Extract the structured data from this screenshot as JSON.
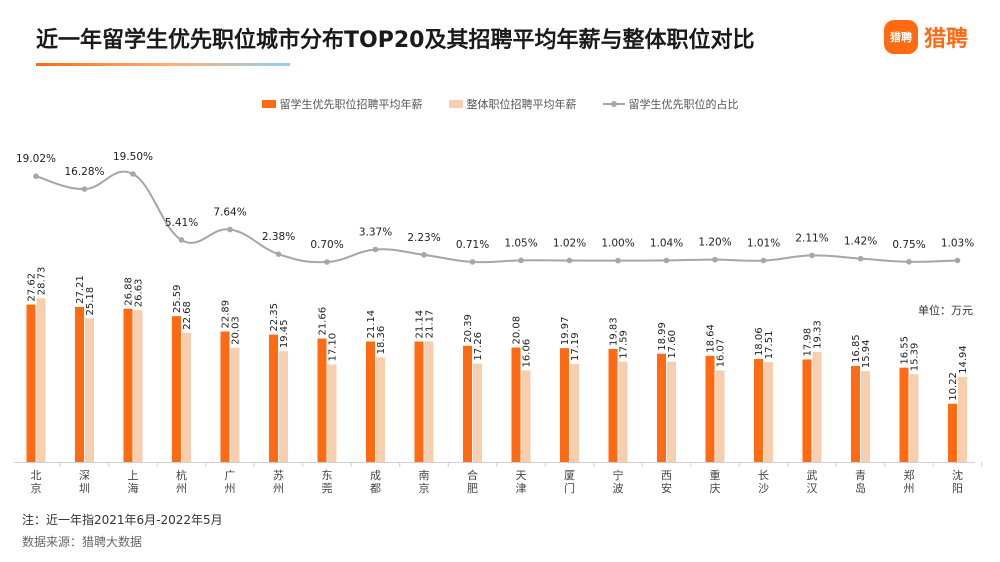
{
  "title": "近一年留学生优先职位城市分布TOP20及其招聘平均年薪与整体职位对比",
  "logo": {
    "mark": "猎聘",
    "text": "猎聘"
  },
  "unit_label": "单位：万元",
  "note": "注：近一年指2021年6月-2022年5月",
  "source": "数据来源：猎聘大数据",
  "colors": {
    "series1": "#ff6a13",
    "series2": "#f8cfae",
    "line": "#a6a6a6"
  },
  "chart_data": {
    "type": "bar",
    "categories": [
      "北京",
      "深圳",
      "上海",
      "杭州",
      "广州",
      "苏州",
      "东莞",
      "成都",
      "南京",
      "合肥",
      "天津",
      "厦门",
      "宁波",
      "西安",
      "重庆",
      "长沙",
      "武汉",
      "青岛",
      "郑州",
      "沈阳"
    ],
    "series": [
      {
        "name": "留学生优先职位招聘平均年薪",
        "type": "bar",
        "values": [
          27.62,
          27.21,
          26.88,
          25.59,
          22.89,
          22.35,
          21.66,
          21.14,
          21.14,
          20.39,
          20.08,
          19.97,
          19.83,
          18.99,
          18.64,
          18.06,
          17.98,
          16.85,
          16.55,
          10.22
        ]
      },
      {
        "name": "整体职位招聘平均年薪",
        "type": "bar",
        "values": [
          28.73,
          25.18,
          26.63,
          22.68,
          20.03,
          19.45,
          17.1,
          18.36,
          21.17,
          17.26,
          16.06,
          17.19,
          17.59,
          17.6,
          16.07,
          17.51,
          19.33,
          15.94,
          15.39,
          14.94
        ]
      },
      {
        "name": "留学生优先职位的占比",
        "type": "line",
        "values": [
          19.02,
          16.28,
          19.5,
          5.41,
          7.64,
          2.38,
          0.7,
          3.37,
          2.23,
          0.71,
          1.05,
          1.02,
          1.0,
          1.04,
          1.2,
          1.01,
          2.11,
          1.42,
          0.75,
          1.03
        ],
        "labels": [
          "19.02%",
          "16.28%",
          "19.50%",
          "5.41%",
          "7.64%",
          "2.38%",
          "0.70%",
          "3.37%",
          "2.23%",
          "0.71%",
          "1.05%",
          "1.02%",
          "1.00%",
          "1.04%",
          "1.20%",
          "1.01%",
          "2.11%",
          "1.42%",
          "0.75%",
          "1.03%"
        ]
      }
    ],
    "legend_position": "top"
  }
}
